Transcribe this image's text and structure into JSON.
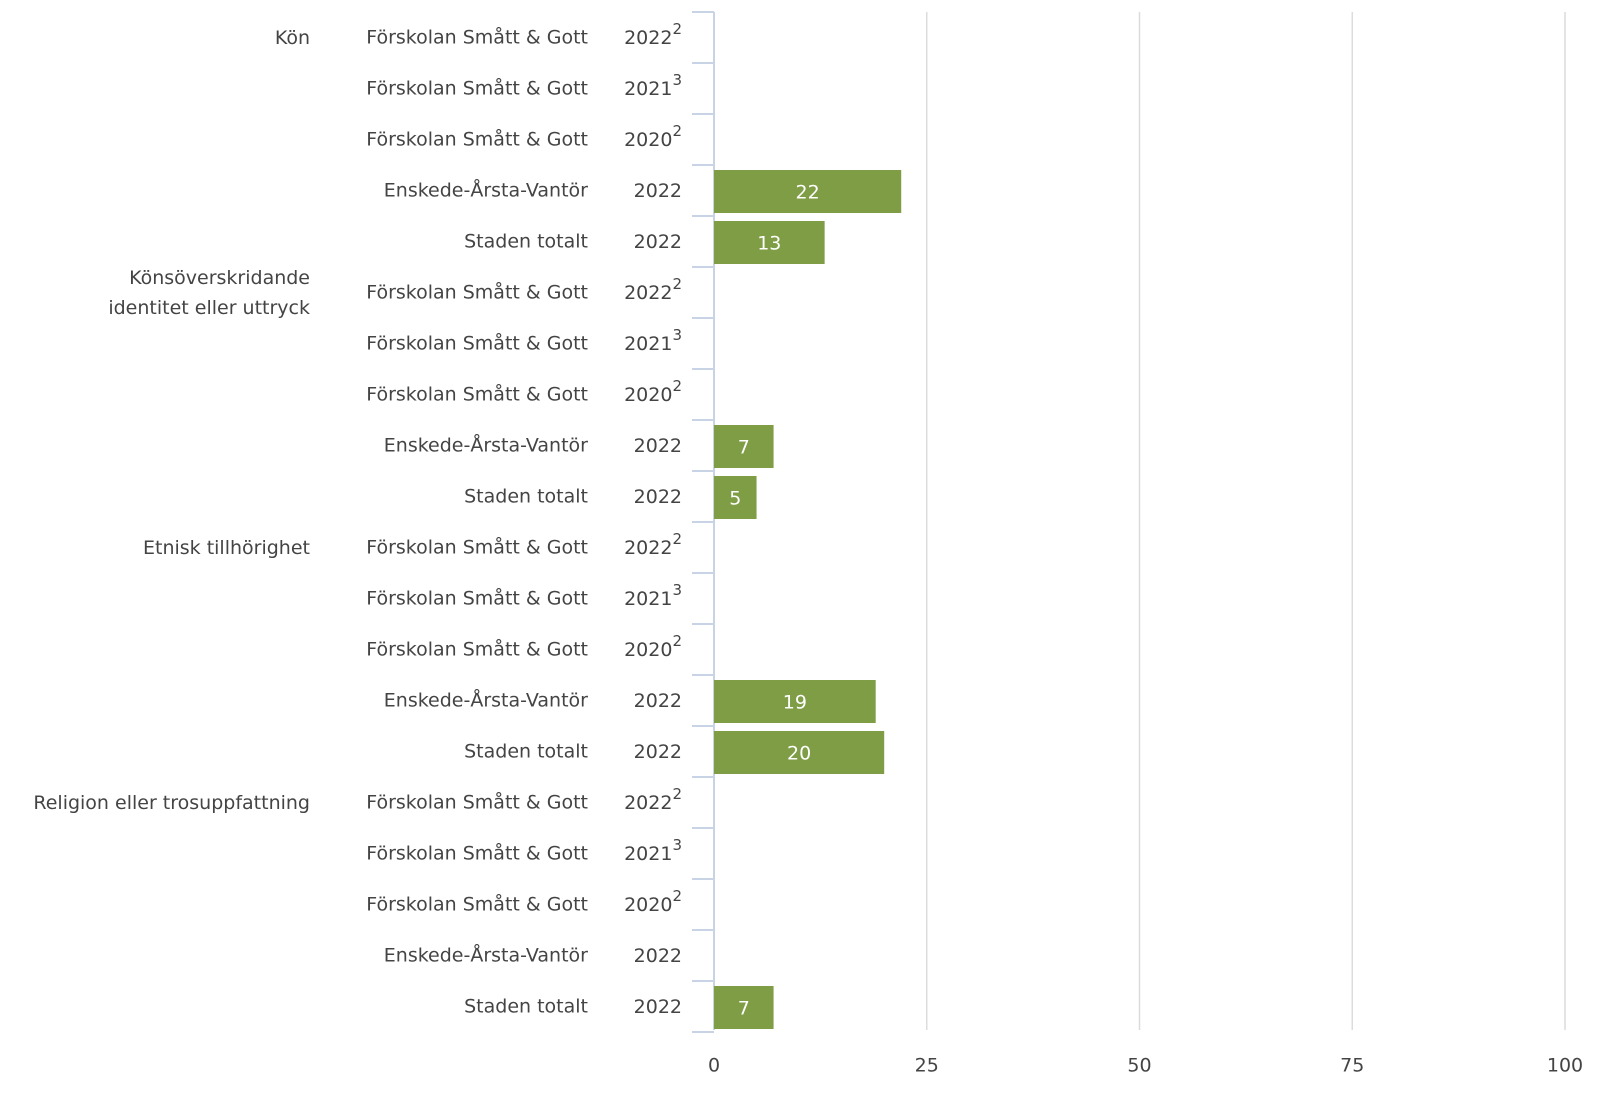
{
  "chart_data": {
    "type": "bar",
    "orientation": "horizontal",
    "color": "#7e9d45",
    "xlim": [
      0,
      100
    ],
    "xticks": [
      0,
      25,
      50,
      75,
      100
    ],
    "grid": true,
    "groups": [
      {
        "label": "Kön",
        "categories": [
          "Förskolan Smått & Gott",
          "Förskolan Smått & Gott",
          "Förskolan Smått & Gott",
          "Enskede-Årsta-Vantör",
          "Staden totalt"
        ],
        "years": [
          "2022",
          "2021",
          "2020",
          "2022",
          "2022"
        ],
        "notes": [
          "2",
          "3",
          "2",
          null,
          null
        ],
        "values": [
          null,
          null,
          null,
          22,
          13
        ]
      },
      {
        "label": "Könsöverskridande\nidentitet eller uttryck",
        "categories": [
          "Förskolan Smått & Gott",
          "Förskolan Smått & Gott",
          "Förskolan Smått & Gott",
          "Enskede-Årsta-Vantör",
          "Staden totalt"
        ],
        "years": [
          "2022",
          "2021",
          "2020",
          "2022",
          "2022"
        ],
        "notes": [
          "2",
          "3",
          "2",
          null,
          null
        ],
        "values": [
          null,
          null,
          null,
          7,
          5
        ]
      },
      {
        "label": "Etnisk tillhörighet",
        "categories": [
          "Förskolan Smått & Gott",
          "Förskolan Smått & Gott",
          "Förskolan Smått & Gott",
          "Enskede-Årsta-Vantör",
          "Staden totalt"
        ],
        "years": [
          "2022",
          "2021",
          "2020",
          "2022",
          "2022"
        ],
        "notes": [
          "2",
          "3",
          "2",
          null,
          null
        ],
        "values": [
          null,
          null,
          null,
          19,
          20
        ]
      },
      {
        "label": "Religion eller trosuppfattning",
        "categories": [
          "Förskolan Smått & Gott",
          "Förskolan Smått & Gott",
          "Förskolan Smått & Gott",
          "Enskede-Årsta-Vantör",
          "Staden totalt"
        ],
        "years": [
          "2022",
          "2021",
          "2020",
          "2022",
          "2022"
        ],
        "notes": [
          "2",
          "3",
          "2",
          null,
          null
        ],
        "values": [
          null,
          null,
          null,
          null,
          7
        ]
      }
    ]
  }
}
